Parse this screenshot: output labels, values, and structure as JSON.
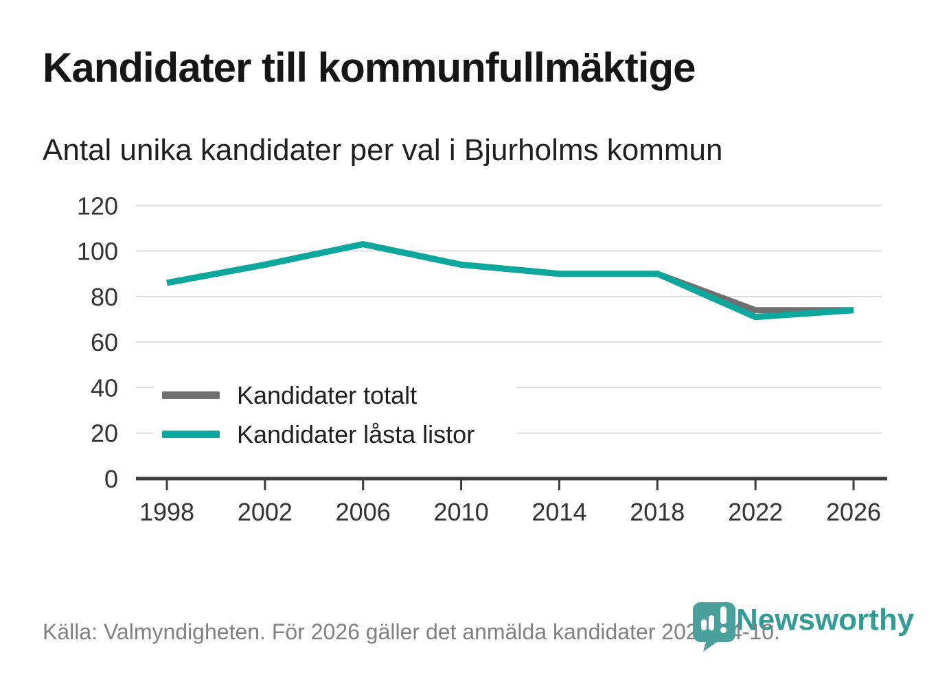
{
  "title": "Kandidater till kommunfullmäktige",
  "subtitle": "Antal unika kandidater per val i Bjurholms kommun",
  "source_note": "Källa: Valmyndigheten. För 2026 gäller det anmälda kandidater 2026-04-10.",
  "branding": {
    "wordmark": "Newsworthy",
    "logo_icon": "newsworthy-pin-barchart-icon",
    "brand_color": "#2f9c96"
  },
  "colors": {
    "total_line": "#6f6f6f",
    "locked_line": "#0ca89e",
    "grid": "#dcdcdc",
    "axis": "#3b3b3b",
    "tick_text": "#333333",
    "body_text": "#1f1f1f",
    "muted_text": "#808080"
  },
  "chart_data": {
    "type": "line",
    "title": "Kandidater till kommunfullmäktige",
    "subtitle": "Antal unika kandidater per val i Bjurholms kommun",
    "categories": [
      "1998",
      "2002",
      "2006",
      "2010",
      "2014",
      "2018",
      "2022",
      "2026"
    ],
    "series": [
      {
        "name": "Kandidater totalt",
        "color": "#6f6f6f",
        "values": [
          86,
          94,
          103,
          94,
          90,
          90,
          74,
          74
        ]
      },
      {
        "name": "Kandidater låsta listor",
        "color": "#0ca89e",
        "values": [
          86,
          94,
          103,
          94,
          90,
          90,
          71,
          74
        ]
      }
    ],
    "ylim": [
      0,
      120
    ],
    "y_ticks": [
      "0",
      "20",
      "40",
      "60",
      "80",
      "100",
      "120"
    ],
    "grid": "horizontal",
    "legend_position": "inside-left-bottom"
  }
}
